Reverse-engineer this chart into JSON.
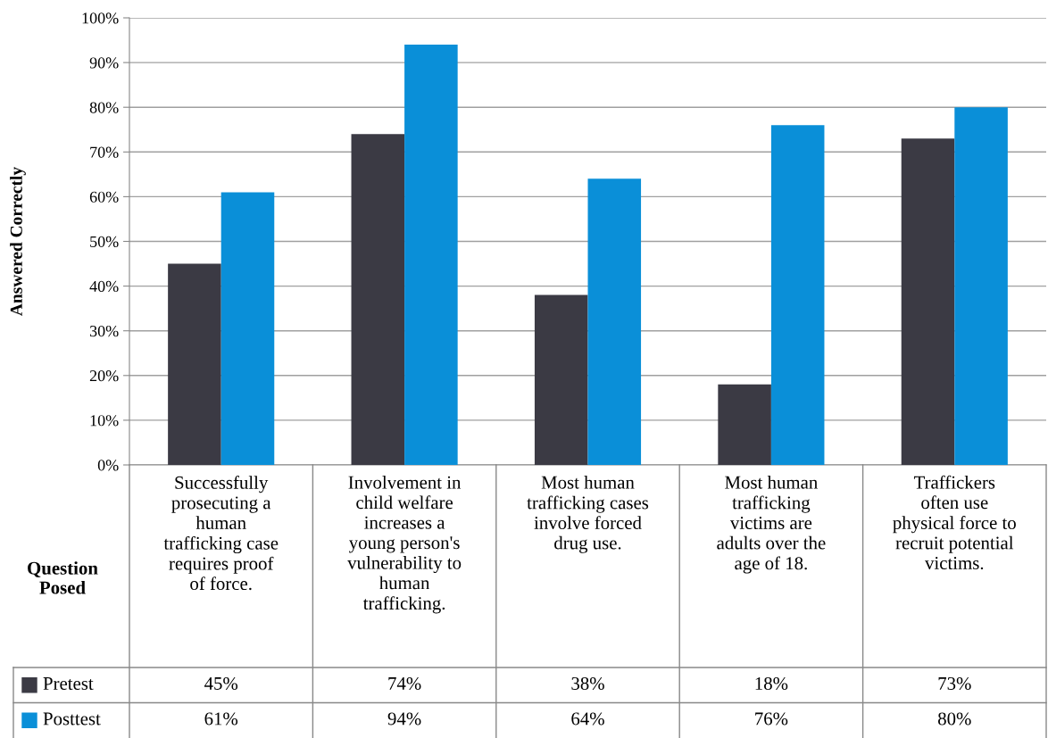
{
  "chart_data": {
    "type": "bar",
    "ylabel": "Answered Correctly",
    "xlabel": "Question Posed",
    "categories": [
      "Successfully prosecuting a human trafficking case requires proof of force.",
      "Involvement in child welfare increases a young person's vulnerability to human trafficking.",
      "Most human trafficking cases involve forced drug use.",
      "Most human trafficking victims are adults over the age of 18.",
      "Traffickers often use physical force to recruit potential victims."
    ],
    "series": [
      {
        "name": "Pretest",
        "color": "#3b3a44",
        "values": [
          45,
          74,
          38,
          18,
          73
        ],
        "value_labels": [
          "45%",
          "74%",
          "38%",
          "18%",
          "73%"
        ]
      },
      {
        "name": "Posttest",
        "color": "#0a8fd8",
        "values": [
          61,
          94,
          64,
          76,
          80
        ],
        "value_labels": [
          "61%",
          "94%",
          "64%",
          "76%",
          "80%"
        ]
      }
    ],
    "ylim": [
      0,
      100
    ],
    "yticks": [
      {
        "value": 0,
        "label": "0%"
      },
      {
        "value": 10,
        "label": "10%"
      },
      {
        "value": 20,
        "label": "20%"
      },
      {
        "value": 30,
        "label": "30%"
      },
      {
        "value": 40,
        "label": "40%"
      },
      {
        "value": 50,
        "label": "50%"
      },
      {
        "value": 60,
        "label": "60%"
      },
      {
        "value": 70,
        "label": "70%"
      },
      {
        "value": 80,
        "label": "80%"
      },
      {
        "value": 90,
        "label": "90%"
      },
      {
        "value": 100,
        "label": "100%"
      }
    ],
    "grid": "y",
    "data_labels": true,
    "legend": "bottom left"
  }
}
